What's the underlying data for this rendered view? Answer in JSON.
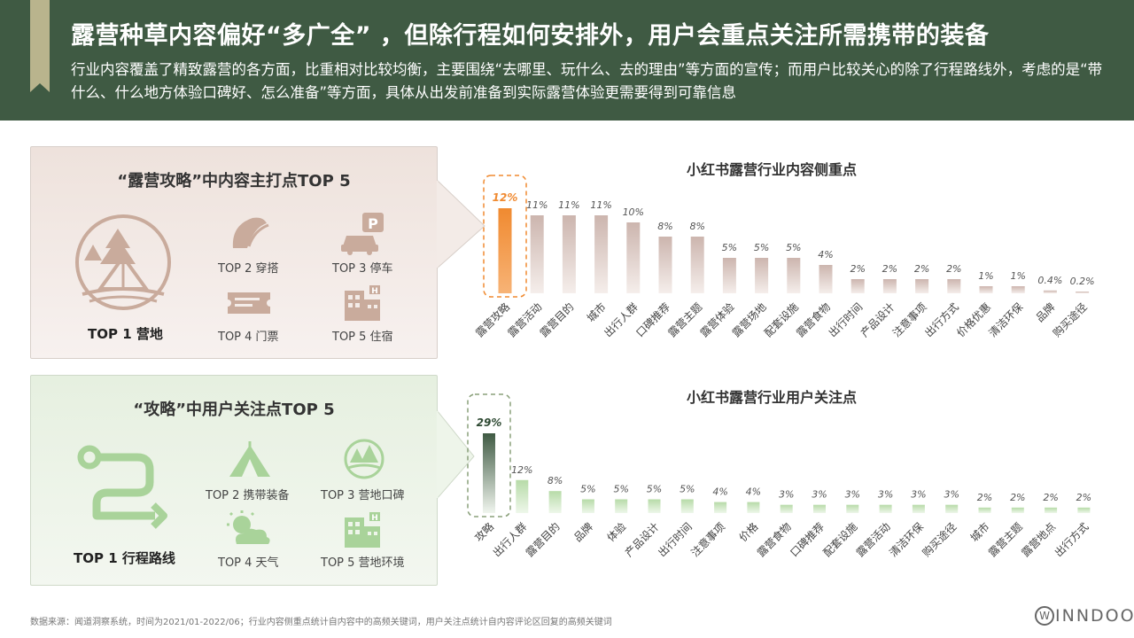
{
  "header": {
    "title": "露营种草内容偏好“多广全” ，但除行程如何安排外，用户会重点关注所需携带的装备",
    "subtitle": "行业内容覆盖了精致露营的各方面，比重相对比较均衡，主要围绕“去哪里、玩什么、去的理由”等方面的宣传；而用户比较关心的除了行程路线外，考虑的是“带什么、什么地方体验口碑好、怎么准备”等方面，具体从出发前准备到实际露营体验更需要得到可靠信息"
  },
  "panel_content": {
    "title": "“露营攻略”中内容主打点TOP 5",
    "top1": "TOP 1 营地",
    "top2": "TOP 2 穿搭",
    "top3": "TOP 3 停车",
    "top4": "TOP 4 门票",
    "top5": "TOP 5 住宿"
  },
  "panel_user": {
    "title": "“攻略”中用户关注点TOP 5",
    "top1": "TOP 1 行程路线",
    "top2": "TOP 2 携带装备",
    "top3": "TOP 3 营地口碑",
    "top4": "TOP 4 天气",
    "top5": "TOP 5 营地环境"
  },
  "chart_data": [
    {
      "type": "bar",
      "title": "小红书露营行业内容侧重点",
      "categories": [
        "露营攻略",
        "露营活动",
        "露营目的",
        "城市",
        "出行人群",
        "口碑推荐",
        "露营主题",
        "露营体验",
        "露营场地",
        "配套设施",
        "露营食物",
        "出行时间",
        "产品设计",
        "注意事项",
        "出行方式",
        "价格优惠",
        "清洁环保",
        "品牌",
        "购买途径"
      ],
      "values": [
        12,
        11,
        11,
        11,
        10,
        8,
        8,
        5,
        5,
        5,
        4,
        2,
        2,
        2,
        2,
        1,
        1,
        0.4,
        0.2
      ],
      "value_labels": [
        "12%",
        "11%",
        "11%",
        "11%",
        "10%",
        "8%",
        "8%",
        "5%",
        "5%",
        "5%",
        "4%",
        "2%",
        "2%",
        "2%",
        "2%",
        "1%",
        "1%",
        "0.4%",
        "0.2%"
      ],
      "highlight_index": 0,
      "highlight_color": "#f08a30",
      "bar_color": "#ccb5ae"
    },
    {
      "type": "bar",
      "title": "小红书露营行业用户关注点",
      "categories": [
        "攻略",
        "出行人群",
        "露营目的",
        "品牌",
        "体验",
        "产品设计",
        "出行时间",
        "注意事项",
        "价格",
        "露营食物",
        "口碑推荐",
        "配套设施",
        "露营活动",
        "清洁环保",
        "购买途径",
        "城市",
        "露营主题",
        "露营地点",
        "出行方式"
      ],
      "values": [
        29,
        12,
        8,
        5,
        5,
        5,
        5,
        4,
        4,
        3,
        3,
        3,
        3,
        3,
        3,
        2,
        2,
        2,
        2
      ],
      "value_labels": [
        "29%",
        "12%",
        "8%",
        "5%",
        "5%",
        "5%",
        "5%",
        "4%",
        "4%",
        "3%",
        "3%",
        "3%",
        "3%",
        "3%",
        "3%",
        "2%",
        "2%",
        "2%",
        "2%"
      ],
      "highlight_index": 0,
      "highlight_color": "#3f5a43",
      "bar_color": "#c9e3bd"
    }
  ],
  "footer": {
    "source": "数据来源：闻道洞察系统，时间为2021/01-2022/06；行业内容侧重点统计自内容中的高频关键词，用户关注点统计自内容评论区回复的高频关键词",
    "brand_mark": "W",
    "brand_name": "INNDOO"
  },
  "colors": {
    "header_bg": "#3f5a43",
    "accent_tab": "#b9b48d",
    "content_icon": "#c9ab9c",
    "user_icon": "#a9d39a"
  }
}
